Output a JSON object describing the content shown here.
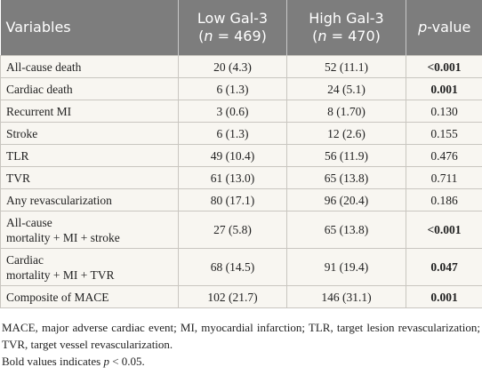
{
  "table": {
    "header": [
      [
        "Variables"
      ],
      [
        "Low Gal-3",
        "(",
        "n",
        " = 469)"
      ],
      [
        "High Gal-3",
        "(",
        "n",
        " = 470)"
      ],
      [
        "p",
        "-value"
      ]
    ],
    "rows": [
      {
        "variable": "All-cause death",
        "low": "20 (4.3)",
        "high": "52 (11.1)",
        "p": "<0.001",
        "bold": true
      },
      {
        "variable": "Cardiac death",
        "low": "6 (1.3)",
        "high": "24 (5.1)",
        "p": "0.001",
        "bold": true
      },
      {
        "variable": "Recurrent MI",
        "low": "3 (0.6)",
        "high": "8 (1.70)",
        "p": "0.130",
        "bold": false
      },
      {
        "variable": "Stroke",
        "low": "6 (1.3)",
        "high": "12 (2.6)",
        "p": "0.155",
        "bold": false
      },
      {
        "variable": "TLR",
        "low": "49 (10.4)",
        "high": "56 (11.9)",
        "p": "0.476",
        "bold": false
      },
      {
        "variable": "TVR",
        "low": "61 (13.0)",
        "high": "65 (13.8)",
        "p": "0.711",
        "bold": false
      },
      {
        "variable": "Any revascularization",
        "low": "80 (17.1)",
        "high": "96 (20.4)",
        "p": "0.186",
        "bold": false
      },
      {
        "variable": "All-cause\nmortality + MI + stroke",
        "low": "27 (5.8)",
        "high": "65 (13.8)",
        "p": "<0.001",
        "bold": true
      },
      {
        "variable": "Cardiac\nmortality + MI + TVR",
        "low": "68 (14.5)",
        "high": "91 (19.4)",
        "p": "0.047",
        "bold": true
      },
      {
        "variable": "Composite of MACE",
        "low": "102 (21.7)",
        "high": "146 (31.1)",
        "p": "0.001",
        "bold": true
      }
    ]
  },
  "footnotes": {
    "abbreviations": "MACE, major adverse cardiac event; MI, myocardial infarction; TLR, target lesion revascularization; TVR, target vessel revascularization.",
    "bold_note": [
      "Bold values indicates ",
      "p",
      " < 0.05."
    ]
  }
}
